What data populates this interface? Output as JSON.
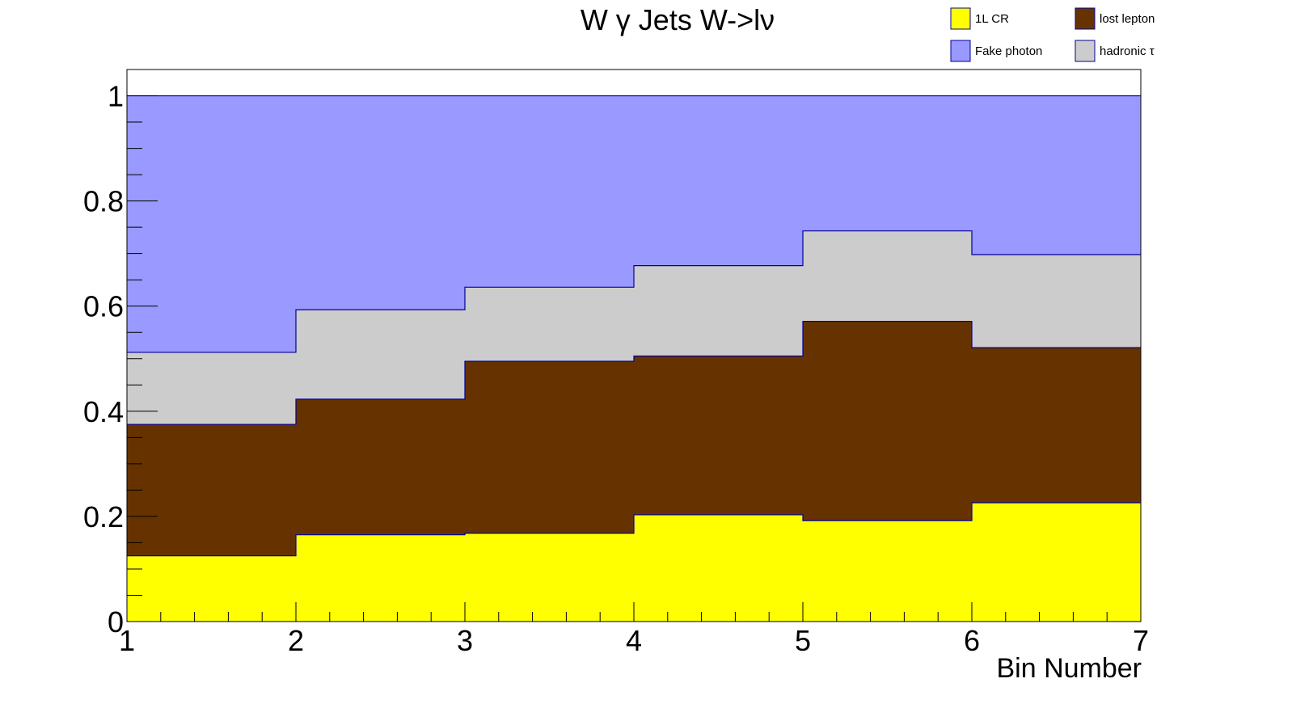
{
  "chart_data": {
    "type": "area",
    "title": "W γ Jets W->lν",
    "xlabel": "Bin Number",
    "ylabel": "",
    "xlim": [
      1,
      7
    ],
    "ylim": [
      0,
      1.05
    ],
    "x_ticks": [
      "1",
      "2",
      "3",
      "4",
      "5",
      "6",
      "7"
    ],
    "y_ticks": [
      "0",
      "0.2",
      "0.4",
      "0.6",
      "0.8",
      "1"
    ],
    "bins": [
      [
        1,
        2
      ],
      [
        2,
        3
      ],
      [
        3,
        4
      ],
      [
        4,
        5
      ],
      [
        5,
        6
      ],
      [
        6,
        7
      ]
    ],
    "stacked": true,
    "grid": false,
    "legend_position": "top-right",
    "series": [
      {
        "name": "1L CR",
        "color": "#ffff00",
        "values": [
          0.125,
          0.165,
          0.168,
          0.203,
          0.192,
          0.226
        ]
      },
      {
        "name": "lost lepton",
        "color": "#663300",
        "values": [
          0.25,
          0.258,
          0.327,
          0.302,
          0.379,
          0.295
        ]
      },
      {
        "name": "hadronic τ",
        "color": "#cccccc",
        "values": [
          0.137,
          0.17,
          0.141,
          0.172,
          0.172,
          0.177
        ]
      },
      {
        "name": "Fake photon",
        "color": "#9999ff",
        "values": [
          0.488,
          0.407,
          0.364,
          0.323,
          0.257,
          0.302
        ]
      }
    ],
    "legend_order": [
      "1L CR",
      "lost lepton",
      "Fake photon",
      "hadronic τ"
    ]
  }
}
